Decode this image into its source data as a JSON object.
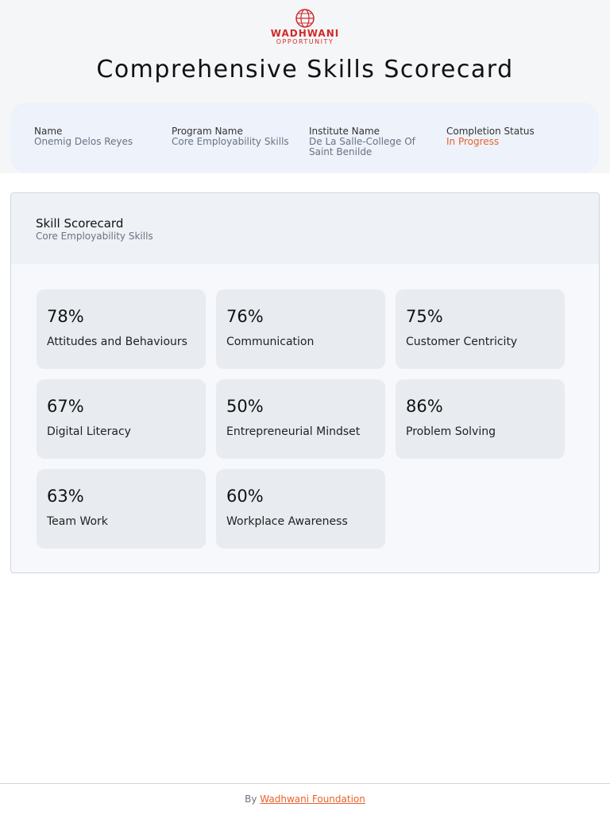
{
  "header": {
    "logo_title": "WADHWANI",
    "logo_subtitle": "OPPORTUNITY",
    "title": "Comprehensive Skills Scorecard"
  },
  "info": [
    {
      "label": "Name",
      "value": "Onemig Delos Reyes"
    },
    {
      "label": "Program Name",
      "value": "Core Employability Skills"
    },
    {
      "label": "Institute Name",
      "value": "De La Salle-College Of Saint Benilde"
    },
    {
      "label": "Completion Status",
      "value": "In Progress"
    }
  ],
  "scorecard": {
    "title": "Skill Scorecard",
    "subtitle": "Core Employability Skills",
    "skills": [
      {
        "score": "78%",
        "name": "Attitudes and Behaviours"
      },
      {
        "score": "76%",
        "name": "Communication"
      },
      {
        "score": "75%",
        "name": "Customer Centricity"
      },
      {
        "score": "67%",
        "name": "Digital Literacy"
      },
      {
        "score": "50%",
        "name": "Entrepreneurial Mindset"
      },
      {
        "score": "86%",
        "name": "Problem Solving"
      },
      {
        "score": "63%",
        "name": "Team Work"
      },
      {
        "score": "60%",
        "name": "Workplace Awareness"
      }
    ]
  },
  "footer": {
    "prefix": "By",
    "link": "Wadhwani Foundation"
  }
}
